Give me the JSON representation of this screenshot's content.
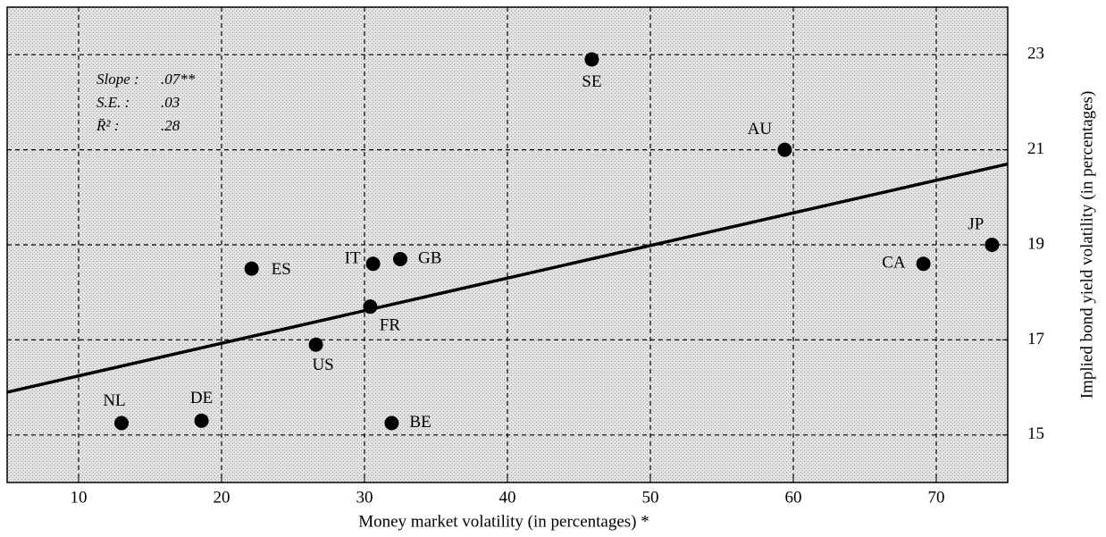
{
  "chart_data": {
    "type": "scatter",
    "xlabel": "Money market volatility (in percentages) *",
    "ylabel": "Implied bond yield volatility (in percentages)",
    "labels": [
      "SE",
      "AU",
      "JP",
      "CA",
      "GB",
      "IT",
      "ES",
      "FR",
      "US",
      "NL",
      "DE",
      "BE"
    ],
    "x": [
      45.9,
      59.4,
      73.9,
      69.1,
      32.5,
      30.6,
      22.1,
      30.4,
      26.6,
      13.0,
      18.6,
      31.9
    ],
    "values": [
      22.9,
      21.0,
      19.0,
      18.6,
      18.7,
      18.6,
      18.5,
      17.7,
      16.9,
      15.25,
      15.3,
      15.25
    ],
    "color": "#000000",
    "fit": {
      "x": [
        5,
        75
      ],
      "values": [
        15.9,
        20.7
      ]
    },
    "annotations": [
      {
        "name": "Slope :",
        "text": ".07**"
      },
      {
        "name": "S.E. :",
        "text": ".03"
      },
      {
        "name": "R̄² :",
        "text": ".28"
      }
    ],
    "xlim": [
      5,
      75
    ],
    "xticks": [
      10,
      20,
      30,
      40,
      50,
      60,
      70
    ],
    "ylim": [
      14,
      24
    ],
    "yticks": [
      15,
      17,
      19,
      21,
      23
    ],
    "grid": true
  }
}
